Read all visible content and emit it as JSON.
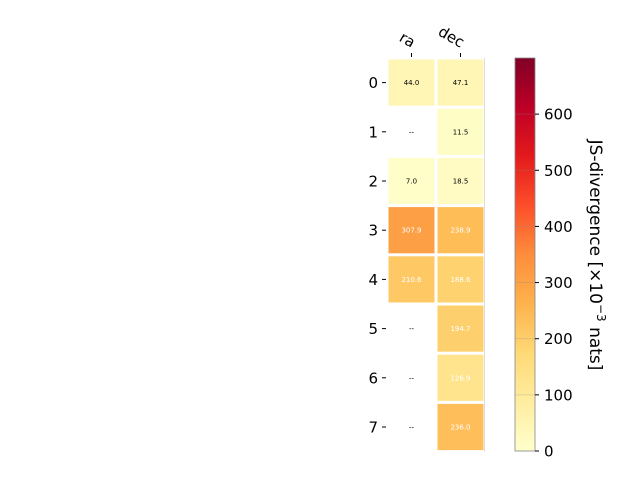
{
  "chart_data": {
    "type": "heatmap",
    "columns": [
      "ra",
      "dec"
    ],
    "rows": [
      "0",
      "1",
      "2",
      "3",
      "4",
      "5",
      "6",
      "7"
    ],
    "values": [
      [
        44.0,
        47.1
      ],
      [
        null,
        11.5
      ],
      [
        7.0,
        18.5
      ],
      [
        307.9,
        238.9
      ],
      [
        210.6,
        188.6
      ],
      [
        null,
        194.7
      ],
      [
        null,
        126.9
      ],
      [
        null,
        236.0
      ]
    ],
    "cell_labels": [
      [
        "44.0",
        "47.1"
      ],
      [
        "--",
        "11.5"
      ],
      [
        "7.0",
        "18.5"
      ],
      [
        "307.9",
        "238.9"
      ],
      [
        "210.6",
        "188.6"
      ],
      [
        "--",
        "194.7"
      ],
      [
        "--",
        "126.9"
      ],
      [
        "--",
        "236.0"
      ]
    ],
    "colorbar": {
      "label": "JS-divergence [×10⁻³ nats]",
      "label_main": "JS-divergence [×10",
      "label_exp": "−3",
      "label_tail": " nats]",
      "min": 0,
      "max": 700,
      "ticks": [
        0,
        100,
        200,
        300,
        400,
        500,
        600
      ],
      "tick_labels": [
        "0",
        "100",
        "200",
        "300",
        "400",
        "500",
        "600"
      ],
      "colormap": "YlOrRd"
    },
    "grid": false
  }
}
